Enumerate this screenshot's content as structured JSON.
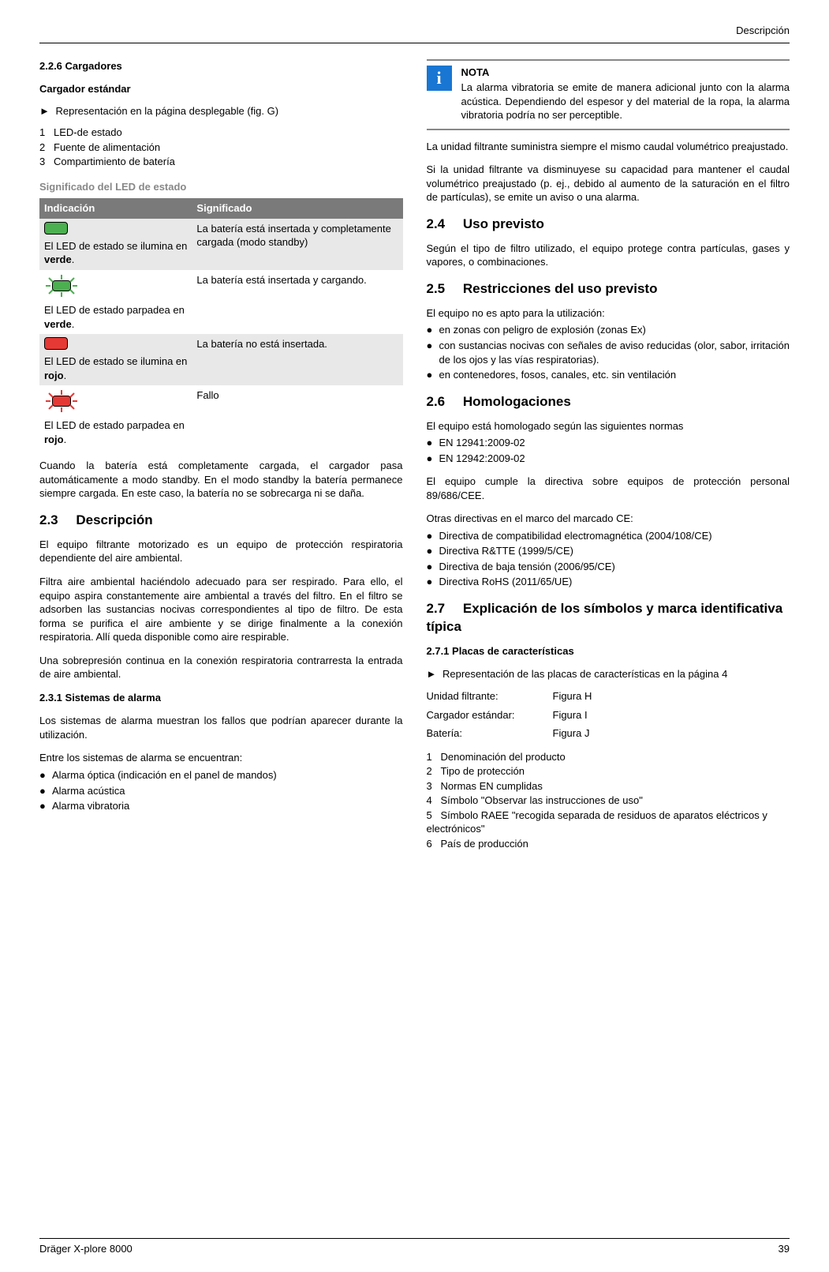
{
  "header": {
    "section": "Descripción"
  },
  "left": {
    "sec226": {
      "title": "2.2.6    Cargadores"
    },
    "charger": {
      "subtitle": "Cargador estándar",
      "rep": "Representación en la página desplegable (fig. G)",
      "items": [
        {
          "n": "1",
          "t": "LED-de estado"
        },
        {
          "n": "2",
          "t": "Fuente de alimentación"
        },
        {
          "n": "3",
          "t": "Compartimiento de batería"
        }
      ]
    },
    "ledHeading": "Significado del LED de estado",
    "ledTable": {
      "h1": "Indicación",
      "h2": "Significado",
      "rows": [
        {
          "color": "#4caf50",
          "blink": false,
          "desc_a": "El LED de estado se ilumina en ",
          "desc_b": "verde",
          "desc_c": ".",
          "meaning": "La batería está insertada y completamente cargada (modo standby)"
        },
        {
          "color": "#4caf50",
          "blink": true,
          "desc_a": "El LED de estado parpadea en ",
          "desc_b": "verde",
          "desc_c": ".",
          "meaning": "La batería está insertada y cargando."
        },
        {
          "color": "#e53935",
          "blink": false,
          "desc_a": "El LED de estado se ilumina en ",
          "desc_b": "rojo",
          "desc_c": ".",
          "meaning": "La batería no está insertada."
        },
        {
          "color": "#e53935",
          "blink": true,
          "desc_a": "El LED de estado parpadea en ",
          "desc_b": "rojo",
          "desc_c": ".",
          "meaning": "Fallo"
        }
      ]
    },
    "afterTable": "Cuando la batería está completamente cargada, el cargador pasa automáticamente a modo standby. En el modo standby la batería permanece siempre cargada. En este caso, la batería no se sobrecarga ni se daña.",
    "sec23": {
      "num": "2.3",
      "title": "Descripción",
      "p1": "El equipo filtrante motorizado es un equipo de protección respiratoria dependiente del aire ambiental.",
      "p2": "Filtra aire ambiental haciéndolo adecuado para ser respirado. Para ello, el equipo aspira constantemente aire ambiental a través del filtro. En el filtro se adsorben las sustancias nocivas correspondientes al tipo de filtro. De esta forma se purifica el aire ambiente y se dirige finalmente a la conexión respiratoria. Allí queda disponible como aire respirable.",
      "p3": "Una sobrepresión continua en la conexión respiratoria contrarresta la entrada de aire ambiental."
    },
    "sec231": {
      "title": "2.3.1    Sistemas de alarma",
      "p1": "Los sistemas de alarma muestran los fallos que podrían aparecer durante la utilización.",
      "p2": "Entre los sistemas de alarma se encuentran:",
      "bullets": [
        "Alarma óptica (indicación en el panel de mandos)",
        "Alarma acústica",
        "Alarma vibratoria"
      ]
    }
  },
  "right": {
    "note": {
      "title": "NOTA",
      "body": "La alarma vibratoria se emite de manera adicional junto con la alarma acústica. Dependiendo del espesor y del material de la ropa, la alarma vibratoria podría no ser perceptible."
    },
    "p1": "La unidad filtrante suministra siempre el mismo caudal volumétrico preajustado.",
    "p2": "Si la unidad filtrante va disminuyese su capacidad para mantener el caudal volumétrico preajustado (p. ej., debido al aumento de la saturación en el filtro de partículas), se emite un aviso o una alarma.",
    "sec24": {
      "num": "2.4",
      "title": "Uso previsto",
      "p1": "Según el tipo de filtro utilizado, el equipo protege contra partículas, gases y vapores, o combinaciones."
    },
    "sec25": {
      "num": "2.5",
      "title": "Restricciones del uso previsto",
      "intro": "El equipo no es apto para la utilización:",
      "bullets": [
        "en zonas con peligro de explosión (zonas Ex)",
        "con sustancias nocivas con señales de aviso reducidas (olor, sabor, irritación de los ojos y las vías respiratorias).",
        "en contenedores, fosos, canales, etc. sin ventilación"
      ]
    },
    "sec26": {
      "num": "2.6",
      "title": "Homologaciones",
      "intro": "El equipo está homologado según las siguientes normas",
      "norms": [
        "EN 12941:2009-02",
        "EN 12942:2009-02"
      ],
      "p2": "El equipo cumple la directiva sobre equipos de protección personal 89/686/CEE.",
      "p3": "Otras directivas en el marco del marcado CE:",
      "dirs": [
        "Directiva de compatibilidad electromagnética (2004/108/CE)",
        "Directiva R&TTE (1999/5/CE)",
        "Directiva de baja tensión (2006/95/CE)",
        "Directiva RoHS (2011/65/UE)"
      ]
    },
    "sec27": {
      "num": "2.7",
      "title": "Explicación de los símbolos y marca identificativa típica"
    },
    "sec271": {
      "title": "2.7.1    Placas de características",
      "rep": "Representación de las placas de características en la página 4",
      "rows": [
        {
          "l": "Unidad filtrante:",
          "v": "Figura H"
        },
        {
          "l": "Cargador estándar:",
          "v": "Figura I"
        },
        {
          "l": "Batería:",
          "v": "Figura J"
        }
      ],
      "items": [
        {
          "n": "1",
          "t": "Denominación del producto"
        },
        {
          "n": "2",
          "t": "Tipo de protección"
        },
        {
          "n": "3",
          "t": "Normas EN cumplidas"
        },
        {
          "n": "4",
          "t": "Símbolo \"Observar las instrucciones de uso\""
        },
        {
          "n": "5",
          "t": "Símbolo RAEE \"recogida separada de residuos de aparatos eléctricos y electrónicos\""
        },
        {
          "n": "6",
          "t": "País de producción"
        }
      ]
    }
  },
  "footer": {
    "product": "Dräger X-plore 8000",
    "page": "39"
  }
}
